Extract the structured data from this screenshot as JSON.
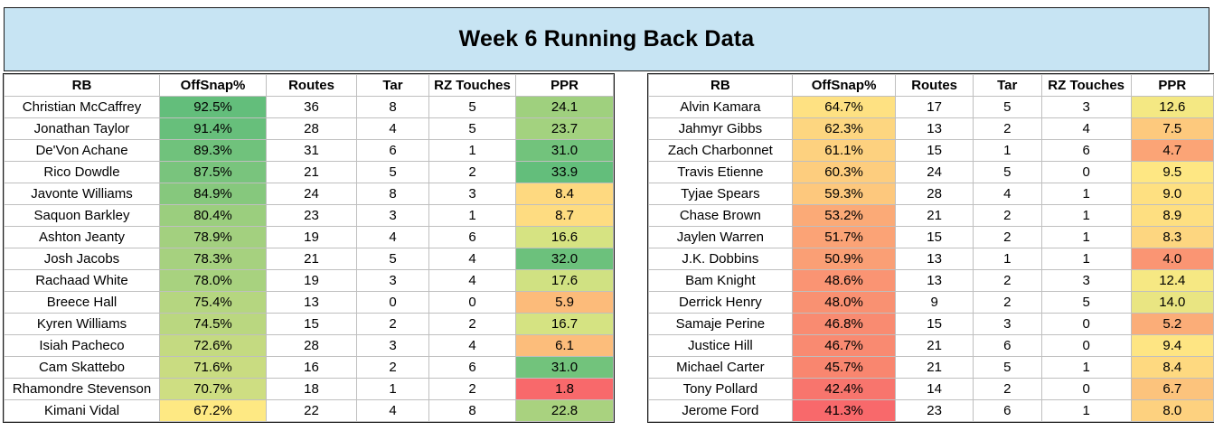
{
  "title": "Week 6 Running Back Data",
  "columns": [
    "RB",
    "OffSnap%",
    "Routes",
    "Tar",
    "RZ Touches",
    "PPR"
  ],
  "left_rows": [
    {
      "rb": "Christian McCaffrey",
      "snap": "92.5%",
      "routes": "36",
      "tar": "8",
      "rz": "5",
      "ppr": "24.1",
      "snap_color": "#63be7b",
      "ppr_color": "#9fd07e"
    },
    {
      "rb": "Jonathan Taylor",
      "snap": "91.4%",
      "routes": "28",
      "tar": "4",
      "rz": "5",
      "ppr": "23.7",
      "snap_color": "#67bf7b",
      "ppr_color": "#a3d27f"
    },
    {
      "rb": "De'Von Achane",
      "snap": "89.3%",
      "routes": "31",
      "tar": "6",
      "rz": "1",
      "ppr": "31.0",
      "snap_color": "#70c27c",
      "ppr_color": "#72c37c"
    },
    {
      "rb": "Rico Dowdle",
      "snap": "87.5%",
      "routes": "21",
      "tar": "5",
      "rz": "2",
      "ppr": "33.9",
      "snap_color": "#79c47d",
      "ppr_color": "#63be7b"
    },
    {
      "rb": "Javonte Williams",
      "snap": "84.9%",
      "routes": "24",
      "tar": "8",
      "rz": "3",
      "ppr": "8.4",
      "snap_color": "#86c87d",
      "ppr_color": "#fed980"
    },
    {
      "rb": "Saquon Barkley",
      "snap": "80.4%",
      "routes": "23",
      "tar": "3",
      "rz": "1",
      "ppr": "8.7",
      "snap_color": "#9bce7e",
      "ppr_color": "#fedc81"
    },
    {
      "rb": "Ashton Jeanty",
      "snap": "78.9%",
      "routes": "19",
      "tar": "4",
      "rz": "6",
      "ppr": "16.6",
      "snap_color": "#a3d07f",
      "ppr_color": "#d6e382"
    },
    {
      "rb": "Josh Jacobs",
      "snap": "78.3%",
      "routes": "21",
      "tar": "5",
      "rz": "4",
      "ppr": "32.0",
      "snap_color": "#a6d17f",
      "ppr_color": "#6cc17c"
    },
    {
      "rb": "Rachaad White",
      "snap": "78.0%",
      "routes": "19",
      "tar": "3",
      "rz": "4",
      "ppr": "17.6",
      "snap_color": "#a8d27f",
      "ppr_color": "#d0e182"
    },
    {
      "rb": "Breece Hall",
      "snap": "75.4%",
      "routes": "13",
      "tar": "0",
      "rz": "0",
      "ppr": "5.9",
      "snap_color": "#b5d680",
      "ppr_color": "#fcbb7a"
    },
    {
      "rb": "Kyren Williams",
      "snap": "74.5%",
      "routes": "15",
      "tar": "2",
      "rz": "2",
      "ppr": "16.7",
      "snap_color": "#bad780",
      "ppr_color": "#d5e382"
    },
    {
      "rb": "Isiah Pacheco",
      "snap": "72.6%",
      "routes": "28",
      "tar": "3",
      "rz": "4",
      "ppr": "6.1",
      "snap_color": "#c4da81",
      "ppr_color": "#fcbd7b"
    },
    {
      "rb": "Cam Skattebo",
      "snap": "71.6%",
      "routes": "16",
      "tar": "2",
      "rz": "6",
      "ppr": "31.0",
      "snap_color": "#c9dc81",
      "ppr_color": "#72c37c"
    },
    {
      "rb": "Rhamondre Stevenson",
      "snap": "70.7%",
      "routes": "18",
      "tar": "1",
      "rz": "2",
      "ppr": "1.8",
      "snap_color": "#cede82",
      "ppr_color": "#f8696b"
    },
    {
      "rb": "Kimani Vidal",
      "snap": "67.2%",
      "routes": "22",
      "tar": "4",
      "rz": "8",
      "ppr": "22.8",
      "snap_color": "#fee983",
      "ppr_color": "#a9d27f"
    }
  ],
  "right_rows": [
    {
      "rb": "Alvin Kamara",
      "snap": "64.7%",
      "routes": "17",
      "tar": "5",
      "rz": "3",
      "ppr": "12.6",
      "snap_color": "#fee182",
      "ppr_color": "#f4e883"
    },
    {
      "rb": "Jahmyr Gibbs",
      "snap": "62.3%",
      "routes": "13",
      "tar": "2",
      "rz": "4",
      "ppr": "7.5",
      "snap_color": "#fdd680",
      "ppr_color": "#fdc97d"
    },
    {
      "rb": "Zach Charbonnet",
      "snap": "61.1%",
      "routes": "15",
      "tar": "1",
      "rz": "6",
      "ppr": "4.7",
      "snap_color": "#fdd17f",
      "ppr_color": "#fba476"
    },
    {
      "rb": "Travis Etienne",
      "snap": "60.3%",
      "routes": "24",
      "tar": "5",
      "rz": "0",
      "ppr": "9.5",
      "snap_color": "#fdcd7e",
      "ppr_color": "#fee783"
    },
    {
      "rb": "Tyjae Spears",
      "snap": "59.3%",
      "routes": "28",
      "tar": "4",
      "rz": "1",
      "ppr": "9.0",
      "snap_color": "#fdc87d",
      "ppr_color": "#fee081"
    },
    {
      "rb": "Chase Brown",
      "snap": "53.2%",
      "routes": "21",
      "tar": "2",
      "rz": "1",
      "ppr": "8.9",
      "snap_color": "#fbaa77",
      "ppr_color": "#fedf81"
    },
    {
      "rb": "Jaylen Warren",
      "snap": "51.7%",
      "routes": "15",
      "tar": "2",
      "rz": "1",
      "ppr": "8.3",
      "snap_color": "#fba376",
      "ppr_color": "#fdd680"
    },
    {
      "rb": "J.K. Dobbins",
      "snap": "50.9%",
      "routes": "13",
      "tar": "1",
      "rz": "1",
      "ppr": "4.0",
      "snap_color": "#fa9f75",
      "ppr_color": "#fa9573"
    },
    {
      "rb": "Bam Knight",
      "snap": "48.6%",
      "routes": "13",
      "tar": "2",
      "rz": "3",
      "ppr": "12.4",
      "snap_color": "#fa9473",
      "ppr_color": "#f6e883"
    },
    {
      "rb": "Derrick Henry",
      "snap": "48.0%",
      "routes": "9",
      "tar": "2",
      "rz": "5",
      "ppr": "14.0",
      "snap_color": "#f99172",
      "ppr_color": "#e9e582"
    },
    {
      "rb": "Samaje Perine",
      "snap": "46.8%",
      "routes": "15",
      "tar": "3",
      "rz": "0",
      "ppr": "5.2",
      "snap_color": "#f98b71",
      "ppr_color": "#fbad78"
    },
    {
      "rb": "Justice Hill",
      "snap": "46.7%",
      "routes": "21",
      "tar": "6",
      "rz": "0",
      "ppr": "9.4",
      "snap_color": "#f98a71",
      "ppr_color": "#fee583"
    },
    {
      "rb": "Michael Carter",
      "snap": "45.7%",
      "routes": "21",
      "tar": "5",
      "rz": "1",
      "ppr": "8.4",
      "snap_color": "#f9866f",
      "ppr_color": "#fed980"
    },
    {
      "rb": "Tony Pollard",
      "snap": "42.4%",
      "routes": "14",
      "tar": "2",
      "rz": "0",
      "ppr": "6.7",
      "snap_color": "#f8756d",
      "ppr_color": "#fcc37c"
    },
    {
      "rb": "Jerome Ford",
      "snap": "41.3%",
      "routes": "23",
      "tar": "6",
      "rz": "1",
      "ppr": "8.0",
      "snap_color": "#f8696b",
      "ppr_color": "#fdd17f"
    }
  ]
}
